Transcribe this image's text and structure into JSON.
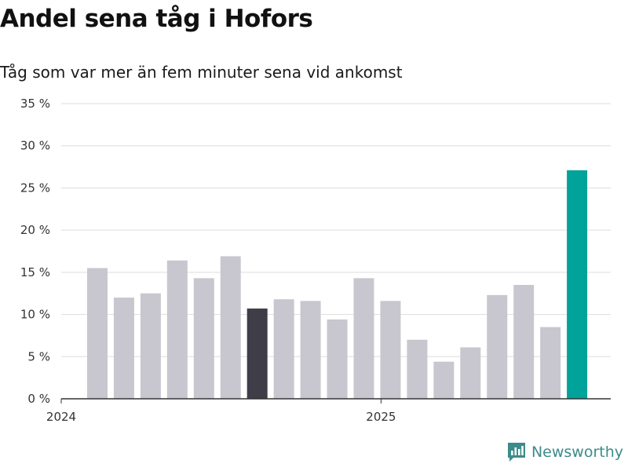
{
  "header": {
    "title": "Andel sena tåg i Hofors",
    "subtitle": "Tåg som var mer än fem minuter sena vid ankomst"
  },
  "brand": {
    "name": "Newsworthy",
    "color": "#3d8b8b",
    "icon": "newsworthy-logo-icon"
  },
  "colors": {
    "default_bar": "#c8c7cf",
    "highlight_dark": "#3e3d48",
    "highlight_accent": "#00a39a",
    "grid": "#dddddd",
    "axis": "#333333"
  },
  "chart_data": {
    "type": "bar",
    "title": "Andel sena tåg i Hofors",
    "subtitle": "Tåg som var mer än fem minuter sena vid ankomst",
    "xlabel": "",
    "ylabel": "",
    "ylim": [
      0,
      35
    ],
    "yticks": [
      0,
      5,
      10,
      15,
      20,
      25,
      30,
      35
    ],
    "ytick_labels": [
      "0 %",
      "5 %",
      "10 %",
      "15 %",
      "20 %",
      "25 %",
      "30 %",
      "35 %"
    ],
    "x_tick_labels": [
      {
        "label": "2024",
        "at_index": 0
      },
      {
        "label": "2025",
        "at_index": 12
      }
    ],
    "grid": true,
    "values": [
      15.5,
      12.0,
      12.5,
      16.4,
      14.3,
      16.9,
      10.7,
      11.8,
      11.6,
      9.4,
      14.3,
      11.6,
      7.0,
      4.4,
      6.1,
      12.3,
      13.5,
      8.5,
      27.1
    ],
    "highlight": [
      {
        "index": 6,
        "color": "#3e3d48"
      },
      {
        "index": 18,
        "color": "#00a39a"
      }
    ]
  }
}
